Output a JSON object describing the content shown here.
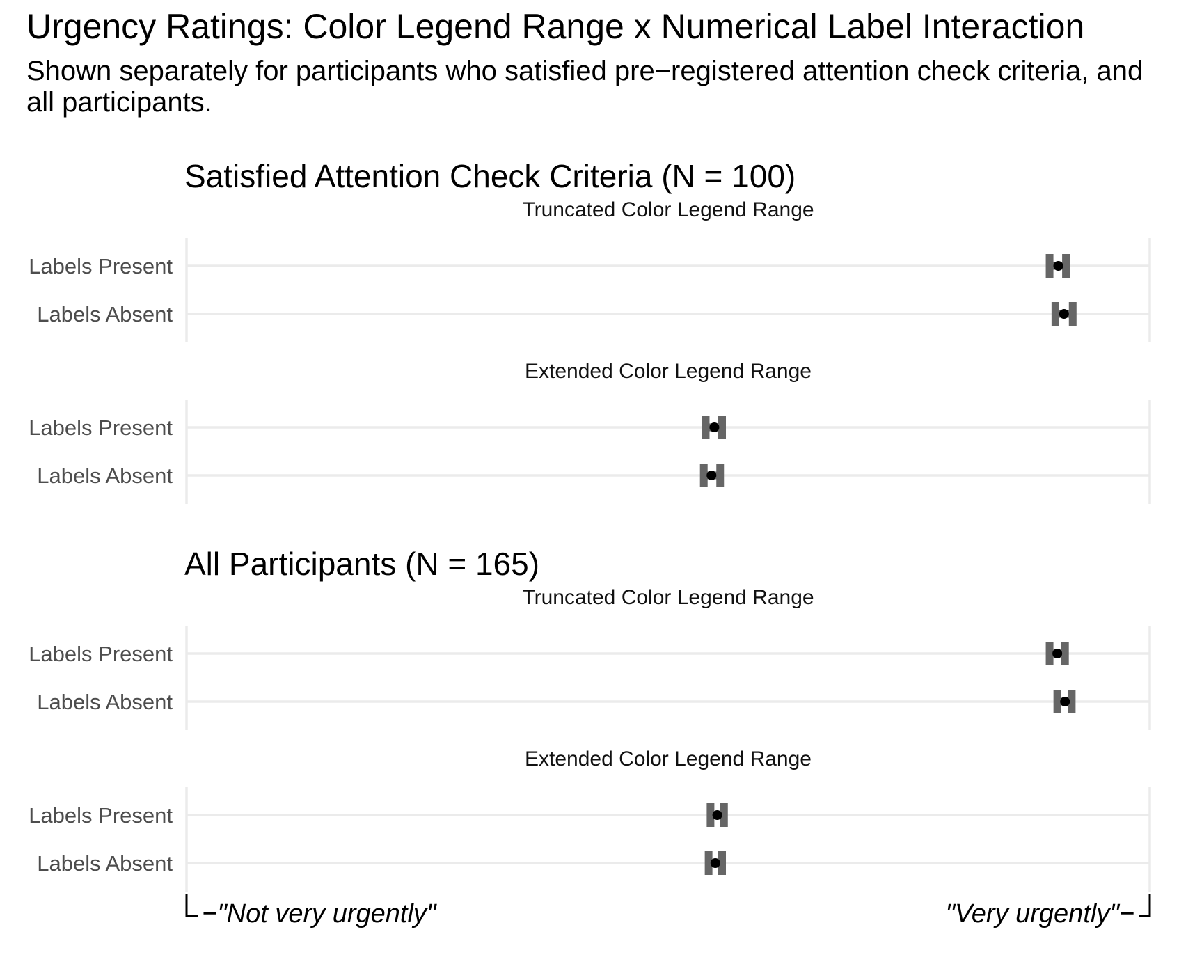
{
  "chart_data": {
    "type": "dot",
    "title": "Urgency Ratings: Color Legend Range x Numerical Label Interaction",
    "subtitle": "Shown separately for participants who satisfied pre−registered attention check criteria, and all participants.",
    "x_anchor_low": "\"Not very urgently\"",
    "x_anchor_high": "\"Very urgently\"",
    "xlim": [
      0,
      100
    ],
    "errorbars": true,
    "grid": true,
    "groups": [
      {
        "title": "Satisfied Attention Check Criteria (N = 100)",
        "panels": [
          {
            "title": "Truncated Color Legend Range",
            "rows": [
              {
                "label": "Labels Present",
                "mean": 90.5,
                "lo": 89.6,
                "hi": 91.3
              },
              {
                "label": "Labels Absent",
                "mean": 91.1,
                "lo": 90.2,
                "hi": 92.0
              }
            ]
          },
          {
            "title": "Extended Color Legend Range",
            "rows": [
              {
                "label": "Labels Present",
                "mean": 54.8,
                "lo": 53.9,
                "hi": 55.6
              },
              {
                "label": "Labels Absent",
                "mean": 54.5,
                "lo": 53.7,
                "hi": 55.4
              }
            ]
          }
        ]
      },
      {
        "title": "All Participants (N = 165)",
        "panels": [
          {
            "title": "Truncated Color Legend Range",
            "rows": [
              {
                "label": "Labels Present",
                "mean": 90.4,
                "lo": 89.6,
                "hi": 91.2
              },
              {
                "label": "Labels Absent",
                "mean": 91.2,
                "lo": 90.4,
                "hi": 91.9
              }
            ]
          },
          {
            "title": "Extended Color Legend Range",
            "rows": [
              {
                "label": "Labels Present",
                "mean": 55.1,
                "lo": 54.4,
                "hi": 55.8
              },
              {
                "label": "Labels Absent",
                "mean": 54.9,
                "lo": 54.2,
                "hi": 55.6
              }
            ]
          }
        ]
      }
    ]
  }
}
